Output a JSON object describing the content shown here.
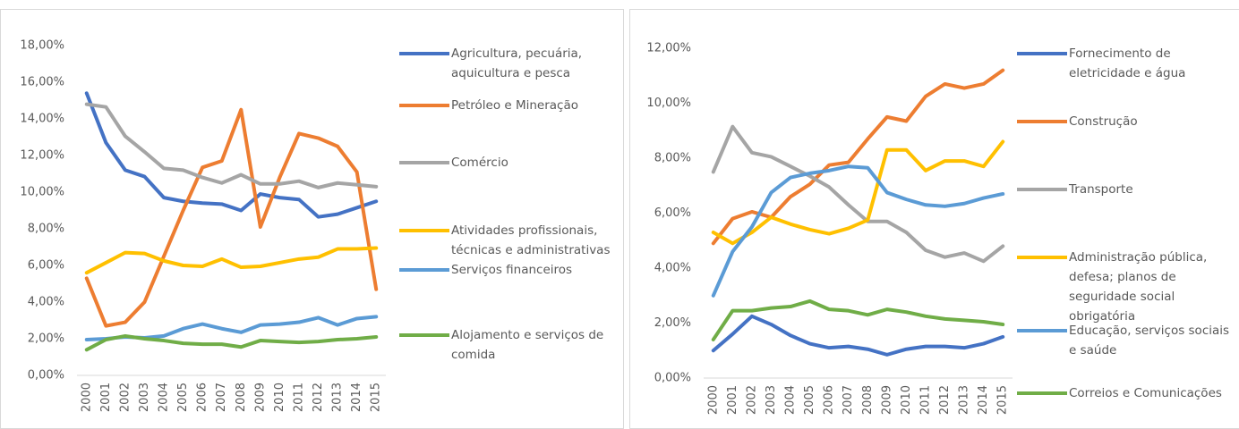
{
  "chart_data": [
    {
      "type": "line",
      "categories": [
        "2000",
        "2001",
        "2002",
        "2003",
        "2004",
        "2005",
        "2006",
        "2007",
        "2008",
        "2009",
        "2010",
        "2011",
        "2012",
        "2013",
        "2014",
        "2015"
      ],
      "ylim": [
        0,
        18
      ],
      "yticks": [
        {
          "value": 0,
          "label": "0,00%"
        },
        {
          "value": 2,
          "label": "2,00%"
        },
        {
          "value": 4,
          "label": "4,00%"
        },
        {
          "value": 6,
          "label": "6,00%"
        },
        {
          "value": 8,
          "label": "8,00%"
        },
        {
          "value": 10,
          "label": "10,00%"
        },
        {
          "value": 12,
          "label": "12,00%"
        },
        {
          "value": 14,
          "label": "14,00%"
        },
        {
          "value": 16,
          "label": "16,00%"
        },
        {
          "value": 18,
          "label": "18,00%"
        }
      ],
      "grid": false,
      "series": [
        {
          "name": "Agricultura, pecuária, aquicultura e pesca",
          "color": "#4472c4",
          "values": [
            15.4,
            12.7,
            11.2,
            10.85,
            9.7,
            9.5,
            9.4,
            9.35,
            9.0,
            9.9,
            9.7,
            9.6,
            8.65,
            8.8,
            9.15,
            9.5
          ]
        },
        {
          "name": "Petróleo e Mineração",
          "color": "#ed7d31",
          "values": [
            5.3,
            2.7,
            2.9,
            4.0,
            6.5,
            9.0,
            11.35,
            11.7,
            14.5,
            8.1,
            10.8,
            13.2,
            12.95,
            12.5,
            11.1,
            4.7
          ]
        },
        {
          "name": "Comércio",
          "color": "#a5a5a5",
          "values": [
            14.8,
            14.65,
            13.05,
            12.2,
            11.3,
            11.2,
            10.8,
            10.5,
            10.95,
            10.45,
            10.45,
            10.6,
            10.25,
            10.5,
            10.4,
            10.3
          ]
        },
        {
          "name": "Atividades profissionais, técnicas e administrativas",
          "color": "#ffc000",
          "values": [
            5.6,
            6.15,
            6.7,
            6.65,
            6.25,
            6.0,
            5.95,
            6.35,
            5.9,
            5.95,
            6.15,
            6.35,
            6.45,
            6.9,
            6.9,
            6.95
          ]
        },
        {
          "name": "Serviços financeiros",
          "color": "#5b9bd5",
          "values": [
            1.95,
            2.0,
            2.1,
            2.05,
            2.15,
            2.55,
            2.8,
            2.55,
            2.35,
            2.75,
            2.8,
            2.9,
            3.15,
            2.75,
            3.1,
            3.2
          ]
        },
        {
          "name": "Alojamento e serviços de comida",
          "color": "#70ad47",
          "values": [
            1.4,
            1.95,
            2.15,
            2.0,
            1.9,
            1.75,
            1.7,
            1.7,
            1.55,
            1.9,
            1.85,
            1.8,
            1.85,
            1.95,
            2.0,
            2.1
          ]
        }
      ]
    },
    {
      "type": "line",
      "categories": [
        "2000",
        "2001",
        "2002",
        "2003",
        "2004",
        "2005",
        "2006",
        "2007",
        "2008",
        "2009",
        "2010",
        "2011",
        "2012",
        "2013",
        "2014",
        "2015"
      ],
      "ylim": [
        0,
        12
      ],
      "yticks": [
        {
          "value": 0,
          "label": "0,00%"
        },
        {
          "value": 2,
          "label": "2,00%"
        },
        {
          "value": 4,
          "label": "4,00%"
        },
        {
          "value": 6,
          "label": "6,00%"
        },
        {
          "value": 8,
          "label": "8,00%"
        },
        {
          "value": 10,
          "label": "10,00%"
        },
        {
          "value": 12,
          "label": "12,00%"
        }
      ],
      "grid": false,
      "series": [
        {
          "name": "Fornecimento de eletricidade e água",
          "color": "#4472c4",
          "values": [
            1.0,
            1.6,
            2.25,
            1.95,
            1.55,
            1.25,
            1.1,
            1.15,
            1.05,
            0.85,
            1.05,
            1.15,
            1.15,
            1.1,
            1.25,
            1.5
          ]
        },
        {
          "name": "Construção",
          "color": "#ed7d31",
          "values": [
            4.9,
            5.8,
            6.05,
            5.85,
            6.6,
            7.05,
            7.75,
            7.85,
            8.7,
            9.5,
            9.35,
            10.25,
            10.7,
            10.55,
            10.7,
            11.2
          ]
        },
        {
          "name": "Transporte",
          "color": "#a5a5a5",
          "values": [
            7.5,
            9.15,
            8.2,
            8.05,
            7.7,
            7.35,
            6.95,
            6.3,
            5.7,
            5.7,
            5.3,
            4.65,
            4.4,
            4.55,
            4.25,
            4.8
          ]
        },
        {
          "name": "Administração pública, defesa; planos de seguridade social obrigatória",
          "color": "#ffc000",
          "values": [
            5.3,
            4.9,
            5.3,
            5.85,
            5.6,
            5.4,
            5.25,
            5.45,
            5.75,
            8.3,
            8.3,
            7.55,
            7.9,
            7.9,
            7.7,
            8.6
          ]
        },
        {
          "name": "Educação, serviços sociais e saúde",
          "color": "#5b9bd5",
          "values": [
            3.0,
            4.6,
            5.5,
            6.75,
            7.3,
            7.45,
            7.55,
            7.7,
            7.65,
            6.75,
            6.5,
            6.3,
            6.25,
            6.35,
            6.55,
            6.7
          ]
        },
        {
          "name": "Correios e Comunicações",
          "color": "#70ad47",
          "values": [
            1.4,
            2.45,
            2.45,
            2.55,
            2.6,
            2.8,
            2.5,
            2.45,
            2.3,
            2.5,
            2.4,
            2.25,
            2.15,
            2.1,
            2.05,
            1.95
          ]
        }
      ]
    }
  ]
}
